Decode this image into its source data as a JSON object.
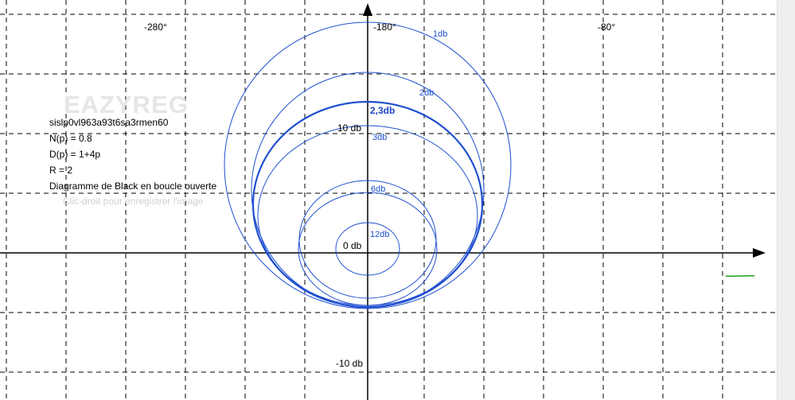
{
  "chart_data": {
    "type": "line",
    "title": "Diagramme de Black en boucle ouverte",
    "x_ticks": [
      "-280°",
      "-180°",
      "-80°"
    ],
    "y_ticks": [
      "0 db",
      "-10 db"
    ],
    "grid": true,
    "contours": [
      {
        "label": "1db",
        "bold": false
      },
      {
        "label": "2db",
        "bold": false
      },
      {
        "label": "2,3db",
        "bold": true
      },
      {
        "label": "3db",
        "bold": false
      },
      {
        "label": "6db",
        "bold": false
      },
      {
        "label": "12db",
        "bold": false
      }
    ],
    "extra_label": "10 db",
    "series": [
      {
        "points": [
          [
            -30,
            -2.45
          ],
          [
            -22,
            -2.42
          ],
          [
            -18,
            -2.4
          ]
        ]
      }
    ],
    "colors": {
      "contour": "#2050d0",
      "series": "#1a9a1a",
      "grid": "#000000",
      "axis": "#000000"
    }
  },
  "info": {
    "watermark": "EAZYREG",
    "id": "sislp0vl963a93t6sa3rmen60",
    "numerator": "N(p) = 0.8",
    "denominator": "D(p) = 1+4p",
    "r_value": "R = 2",
    "title": "Diagramme de Black en boucle ouverte",
    "hint": "Clic-droit pour enregistrer l'image"
  }
}
